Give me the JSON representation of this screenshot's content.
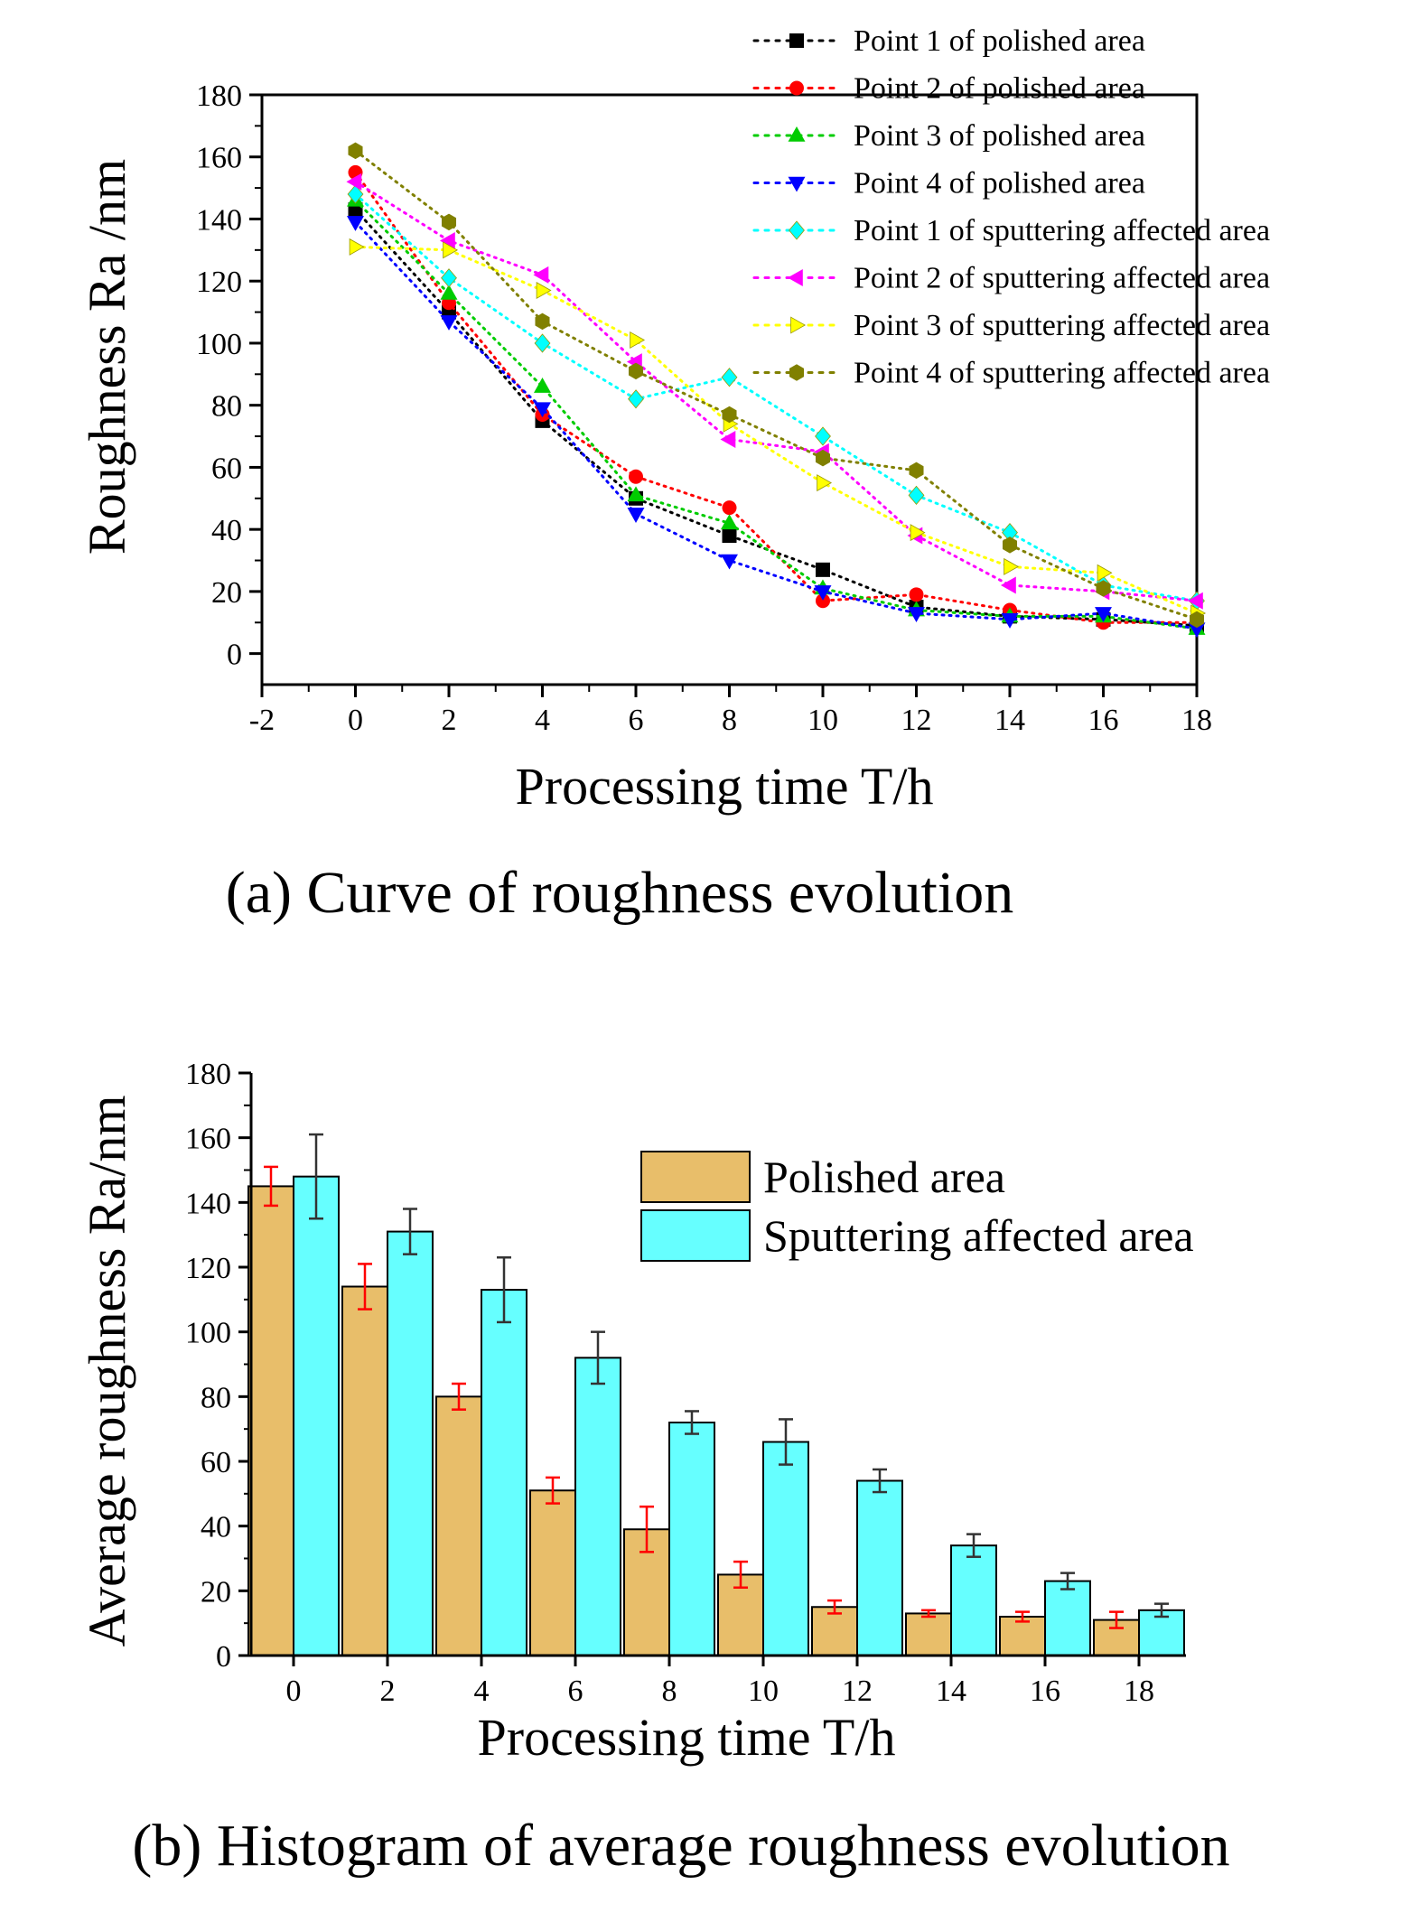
{
  "chart_data": [
    {
      "type": "line",
      "style": "dotted line with markers",
      "caption": "(a) Curve of roughness evolution",
      "xlabel": "Processing time T/h",
      "ylabel": "Roughness Ra /nm",
      "xlim": [
        -2,
        18
      ],
      "ylim": [
        -10,
        180
      ],
      "xticks": [
        -2,
        0,
        2,
        4,
        6,
        8,
        10,
        12,
        14,
        16,
        18
      ],
      "yticks": [
        0,
        20,
        40,
        60,
        80,
        100,
        120,
        140,
        160,
        180
      ],
      "x": [
        0,
        2,
        4,
        6,
        8,
        10,
        12,
        14,
        16,
        18
      ],
      "legend_position": "top-right",
      "series": [
        {
          "name": "Point 1 of polished area",
          "color": "#000000",
          "marker": "square",
          "values": [
            143,
            110,
            75,
            50,
            38,
            27,
            15,
            12,
            11,
            9
          ]
        },
        {
          "name": "Point 2 of polished area",
          "color": "#ff0000",
          "marker": "circle",
          "values": [
            155,
            113,
            77,
            57,
            47,
            17,
            19,
            14,
            10,
            10
          ]
        },
        {
          "name": "Point 3 of polished area",
          "color": "#00cc00",
          "marker": "triangle-up",
          "values": [
            146,
            116,
            86,
            51,
            42,
            21,
            14,
            12,
            12,
            8
          ]
        },
        {
          "name": "Point 4 of polished area",
          "color": "#0000ff",
          "marker": "triangle-down",
          "values": [
            139,
            107,
            79,
            45,
            30,
            20,
            13,
            11,
            13,
            8
          ]
        },
        {
          "name": "Point 1 of sputtering affected area",
          "color": "#00ffff",
          "marker": "diamond",
          "values": [
            148,
            121,
            100,
            82,
            89,
            70,
            51,
            39,
            22,
            17
          ]
        },
        {
          "name": "Point 2 of sputtering affected area",
          "color": "#ff00ff",
          "marker": "triangle-left",
          "values": [
            152,
            133,
            122,
            94,
            69,
            65,
            38,
            22,
            20,
            17
          ]
        },
        {
          "name": "Point 3 of sputtering affected area",
          "color": "#ffff00",
          "marker": "triangle-right",
          "values": [
            131,
            130,
            117,
            101,
            74,
            55,
            39,
            28,
            26,
            13
          ]
        },
        {
          "name": "Point 4 of sputtering affected area",
          "color": "#808000",
          "marker": "hexagon",
          "values": [
            162,
            139,
            107,
            91,
            77,
            63,
            59,
            35,
            21,
            11
          ]
        }
      ]
    },
    {
      "type": "bar",
      "caption": "(b) Histogram of average roughness evolution",
      "xlabel": "Processing time T/h",
      "ylabel": "Average roughness Ra/nm",
      "ylim": [
        0,
        180
      ],
      "yticks": [
        0,
        20,
        40,
        60,
        80,
        100,
        120,
        140,
        160,
        180
      ],
      "categories": [
        "0",
        "2",
        "4",
        "6",
        "8",
        "10",
        "12",
        "14",
        "16",
        "18"
      ],
      "legend_position": "top-right",
      "series": [
        {
          "name": "Polished area",
          "color": "#e8be6a",
          "error_color": "#ff0000",
          "values": [
            145,
            114,
            80,
            51,
            39,
            25,
            15,
            13,
            12,
            11
          ],
          "errors": [
            6,
            7,
            4,
            4,
            7,
            4,
            2,
            1,
            1.5,
            2.5
          ]
        },
        {
          "name": "Sputtering affected area",
          "color": "#66ffff",
          "error_color": "#333333",
          "values": [
            148,
            131,
            113,
            92,
            72,
            66,
            54,
            34,
            23,
            14
          ],
          "errors": [
            13,
            7,
            10,
            8,
            3.5,
            7,
            3.5,
            3.5,
            2.5,
            2
          ]
        }
      ]
    }
  ]
}
